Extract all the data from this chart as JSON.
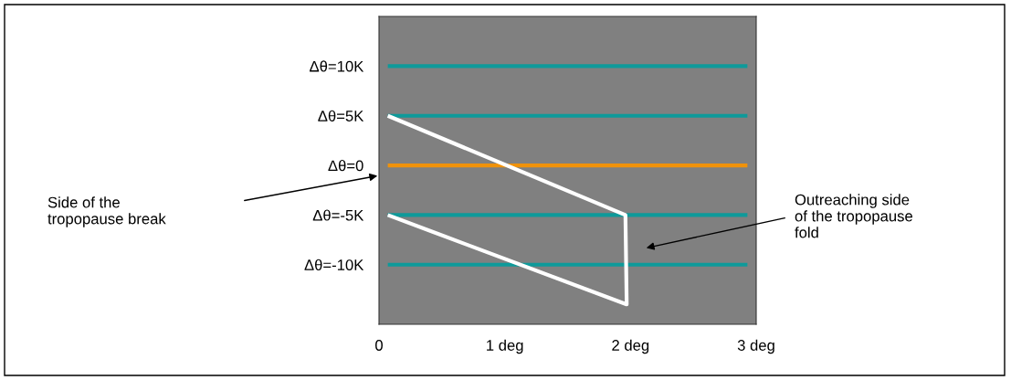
{
  "chart_data": {
    "type": "line",
    "xlim": [
      0,
      3
    ],
    "ylim": [
      -16,
      15
    ],
    "xticks": [
      0,
      {
        "value": 1,
        "label": "1 deg"
      },
      {
        "value": 2,
        "label": "2 deg"
      },
      {
        "value": 3,
        "label": "3 deg"
      }
    ],
    "yticks": [
      {
        "value": 10,
        "label": "Δθ=10K"
      },
      {
        "value": 5,
        "label": "Δθ=5K"
      },
      {
        "value": 0,
        "label": "Δθ=0"
      },
      {
        "value": -5,
        "label": "Δθ=-5K"
      },
      {
        "value": -10,
        "label": "Δθ=-10K"
      }
    ],
    "series": [
      {
        "color": "#0e9a9a",
        "x": [
          0.07,
          2.93
        ],
        "values": [
          10,
          10
        ]
      },
      {
        "color": "#0e9a9a",
        "x": [
          0.07,
          2.93
        ],
        "values": [
          5,
          5
        ]
      },
      {
        "color": "#f0920a",
        "x": [
          0.07,
          2.93
        ],
        "values": [
          0,
          0
        ]
      },
      {
        "color": "#0e9a9a",
        "x": [
          0.07,
          2.93
        ],
        "values": [
          -5,
          -5
        ]
      },
      {
        "color": "#0e9a9a",
        "x": [
          0.07,
          2.93
        ],
        "values": [
          -10,
          -10
        ]
      },
      {
        "color": "#ffffff",
        "x": [
          0.07,
          1.96,
          1.97,
          0.07
        ],
        "values": [
          5,
          -5,
          -14,
          -5
        ]
      }
    ],
    "annotations": [
      "Side of the\ntropopause break",
      "Outreaching side\nof the tropopause\nfold"
    ],
    "grid": false,
    "legend": false,
    "marker": "none",
    "line_style": "solid"
  }
}
